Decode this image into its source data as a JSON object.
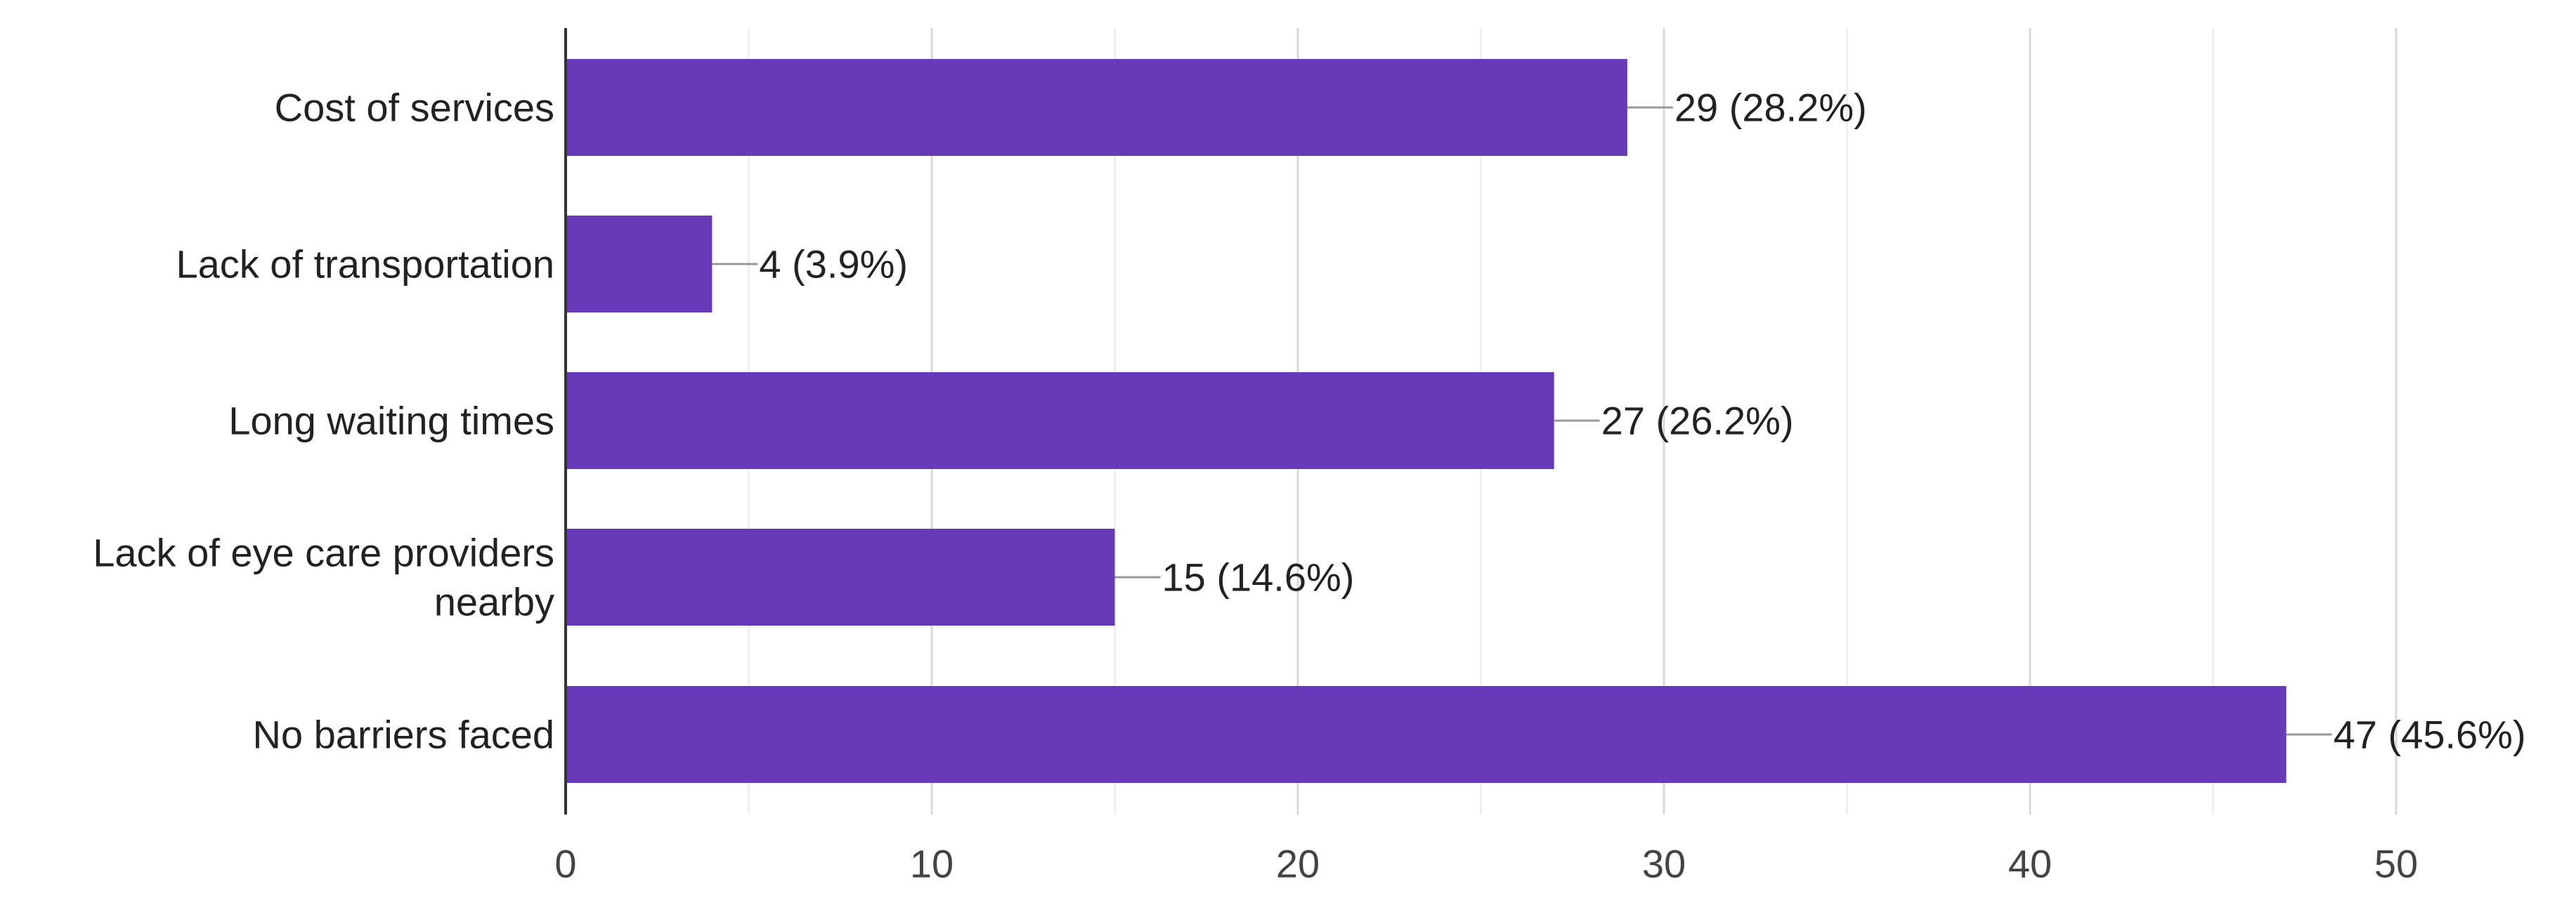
{
  "chart_data": {
    "type": "bar",
    "orientation": "horizontal",
    "categories": [
      [
        "Cost of services"
      ],
      [
        "Lack of transportation"
      ],
      [
        "Long waiting times"
      ],
      [
        "Lack of eye care providers",
        "nearby"
      ],
      [
        "No barriers faced"
      ]
    ],
    "values": [
      29,
      4,
      27,
      15,
      47
    ],
    "data_labels": [
      "29 (28.2%)",
      "4 (3.9%)",
      "27 (26.2%)",
      "15 (14.6%)",
      "47 (45.6%)"
    ],
    "xlim": [
      0,
      50
    ],
    "x_ticks": [
      0,
      10,
      20,
      30,
      40,
      50
    ],
    "x_tick_labels": [
      "0",
      "10",
      "20",
      "30",
      "40",
      "50"
    ],
    "grid": true,
    "legend": "none",
    "title": "",
    "xlabel": "",
    "ylabel": ""
  },
  "colors": {
    "bar": "#673AB7"
  }
}
